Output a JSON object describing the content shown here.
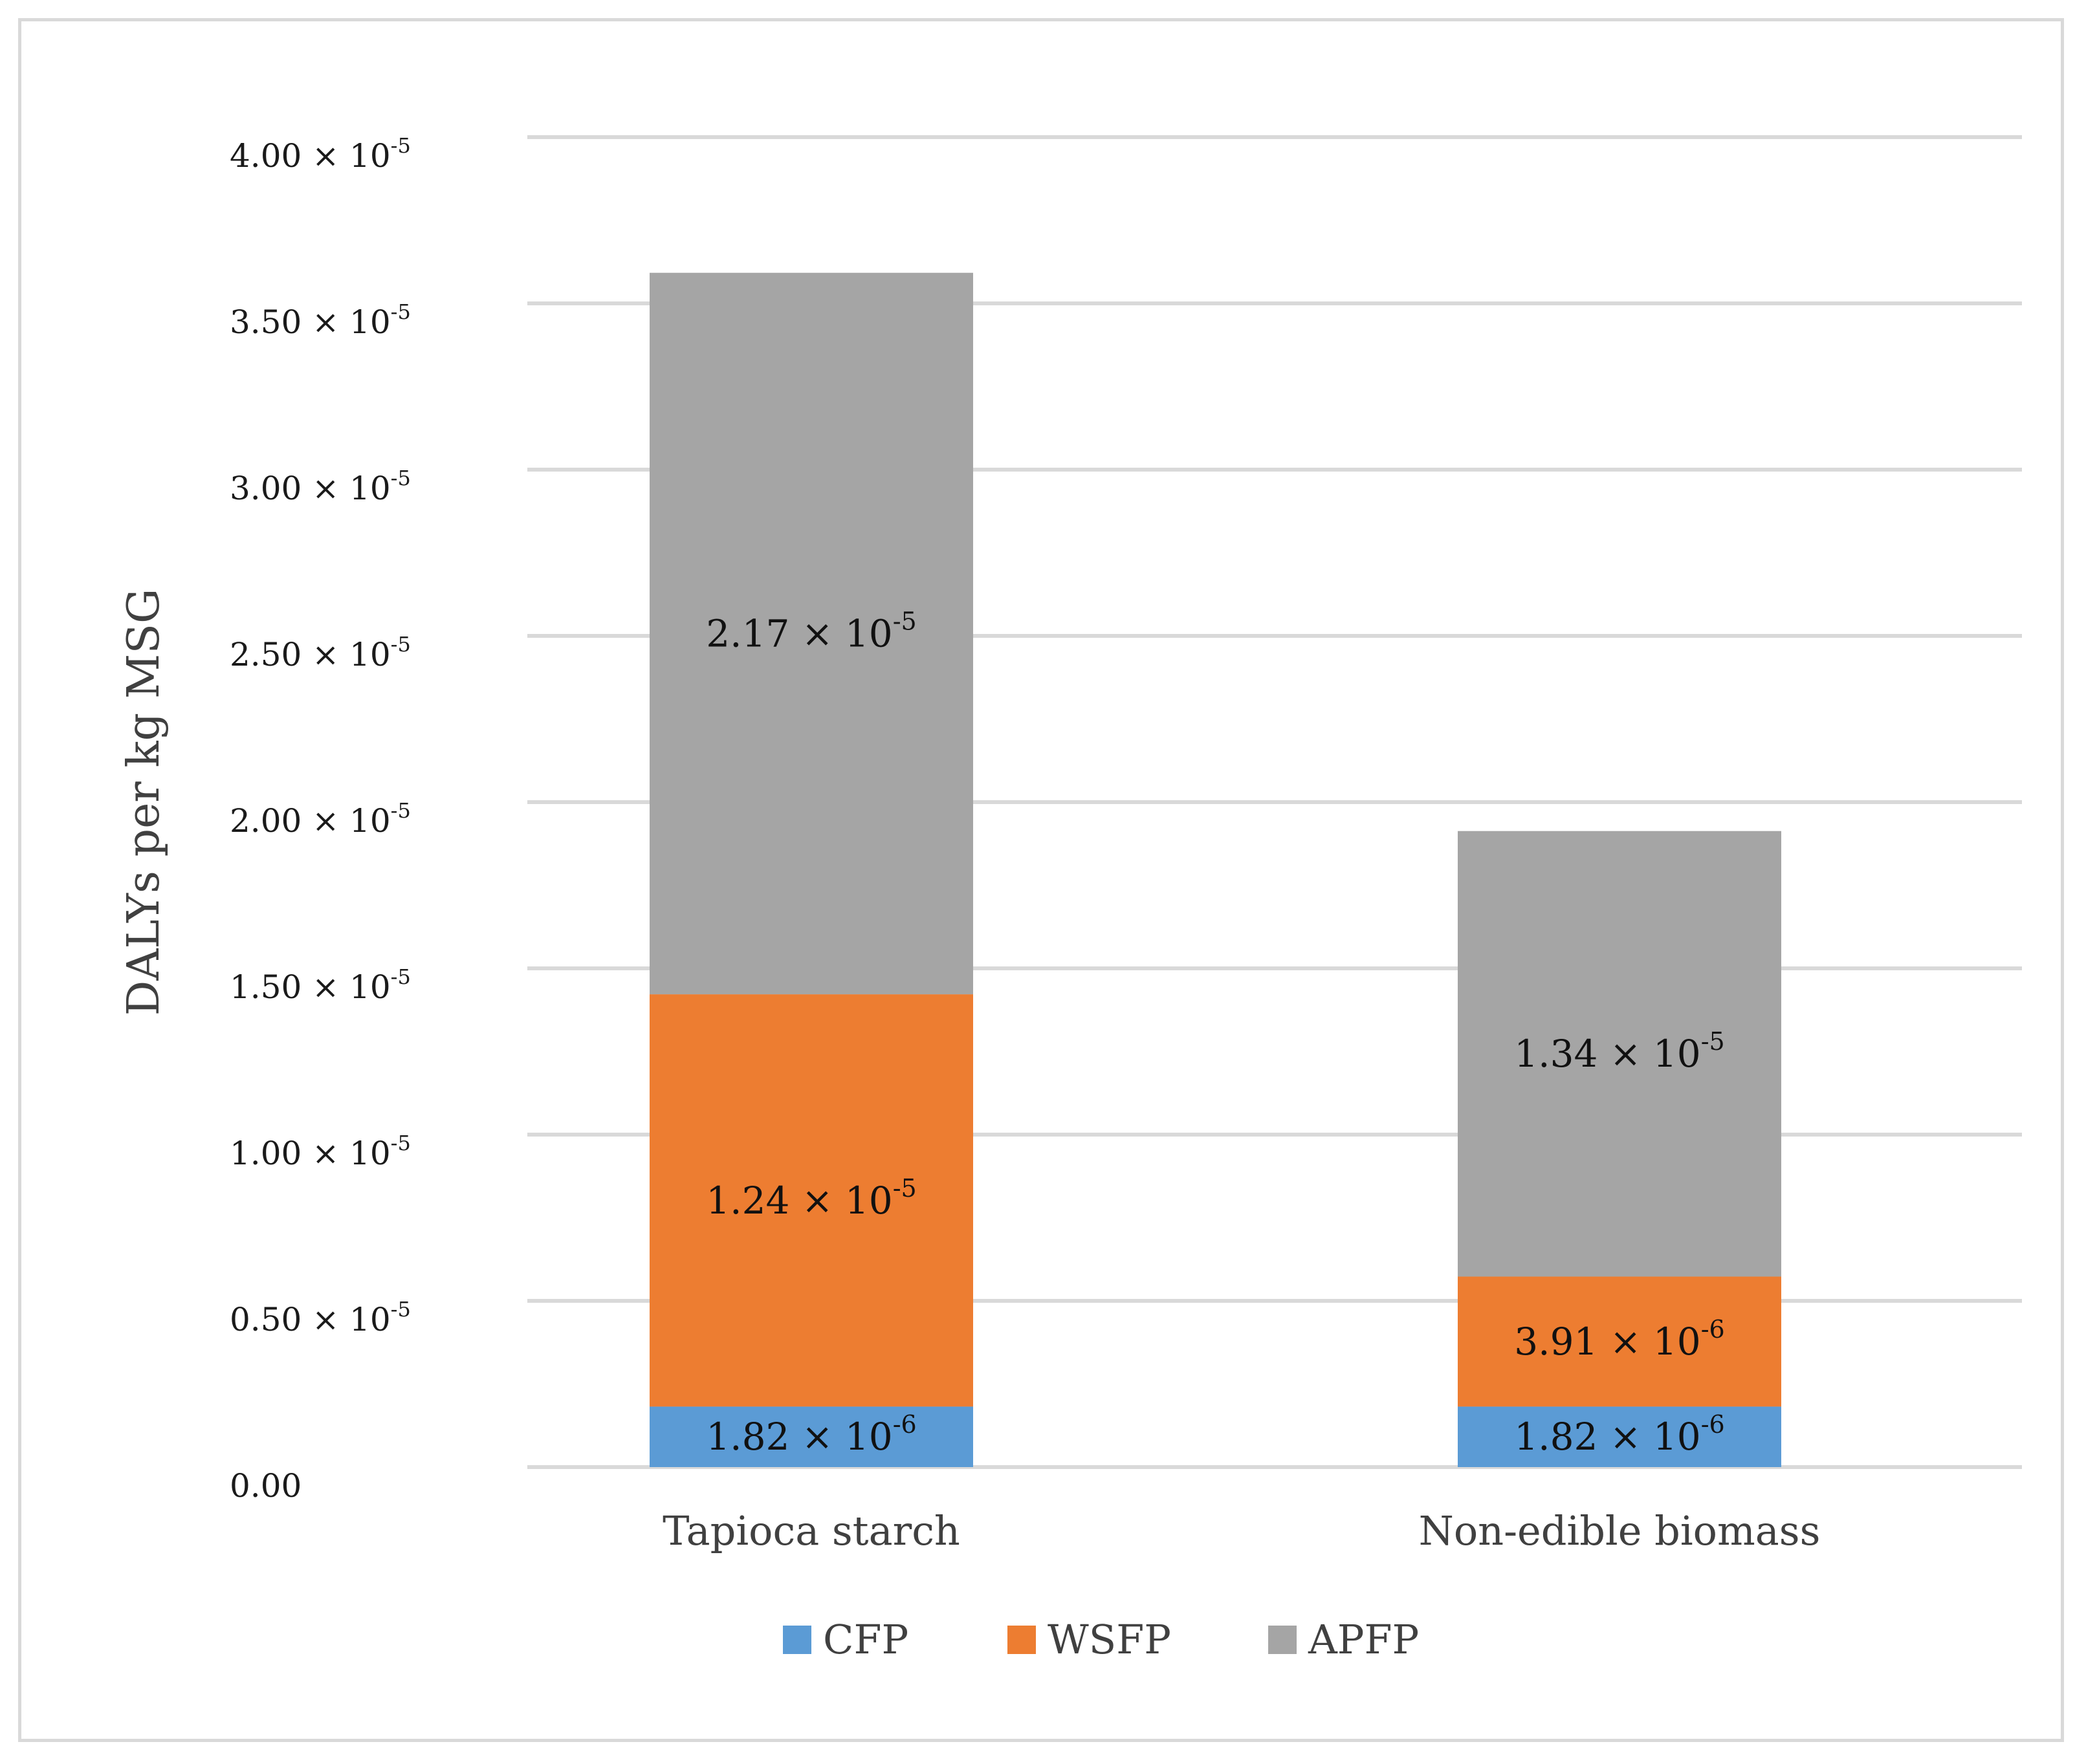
{
  "chart_data": {
    "type": "bar",
    "stacked": true,
    "categories": [
      "Tapioca starch",
      "Non-edible biomass"
    ],
    "series": [
      {
        "name": "CFP",
        "color": "#5b9bd5",
        "values": [
          0.182,
          0.182
        ],
        "labels": [
          "1.82 × 10",
          "1.82 × 10"
        ],
        "label_exponents": [
          "-6",
          "-6"
        ]
      },
      {
        "name": "WSFP",
        "color": "#ed7d31",
        "values": [
          1.24,
          0.391
        ],
        "labels": [
          "1.24 × 10",
          "3.91 × 10"
        ],
        "label_exponents": [
          "-5",
          "-6"
        ]
      },
      {
        "name": "APFP",
        "color": "#a5a5a5",
        "values": [
          2.17,
          1.34
        ],
        "labels": [
          "2.17 × 10",
          "1.34 × 10"
        ],
        "label_exponents": [
          "-5",
          "-5"
        ]
      }
    ],
    "value_units": "× 10^-5 DALYs per kg MSG",
    "ylabel": "DALYs per kg MSG",
    "xlabel": "",
    "ylim": [
      0,
      4.0
    ],
    "yticks": [
      {
        "value": 0.0,
        "label": "0.00",
        "exponent": ""
      },
      {
        "value": 0.5,
        "label": "0.50 × 10",
        "exponent": "-5"
      },
      {
        "value": 1.0,
        "label": "1.00 × 10",
        "exponent": "-5"
      },
      {
        "value": 1.5,
        "label": "1.50 × 10",
        "exponent": "-5"
      },
      {
        "value": 2.0,
        "label": "2.00 × 10",
        "exponent": "-5"
      },
      {
        "value": 2.5,
        "label": "2.50 × 10",
        "exponent": "-5"
      },
      {
        "value": 3.0,
        "label": "3.00 × 10",
        "exponent": "-5"
      },
      {
        "value": 3.5,
        "label": "3.50 × 10",
        "exponent": "-5"
      },
      {
        "value": 4.0,
        "label": "4.00 × 10",
        "exponent": "-5"
      }
    ],
    "grid": true,
    "legend_position": "bottom",
    "gridline_color": "#d9d9d9"
  }
}
